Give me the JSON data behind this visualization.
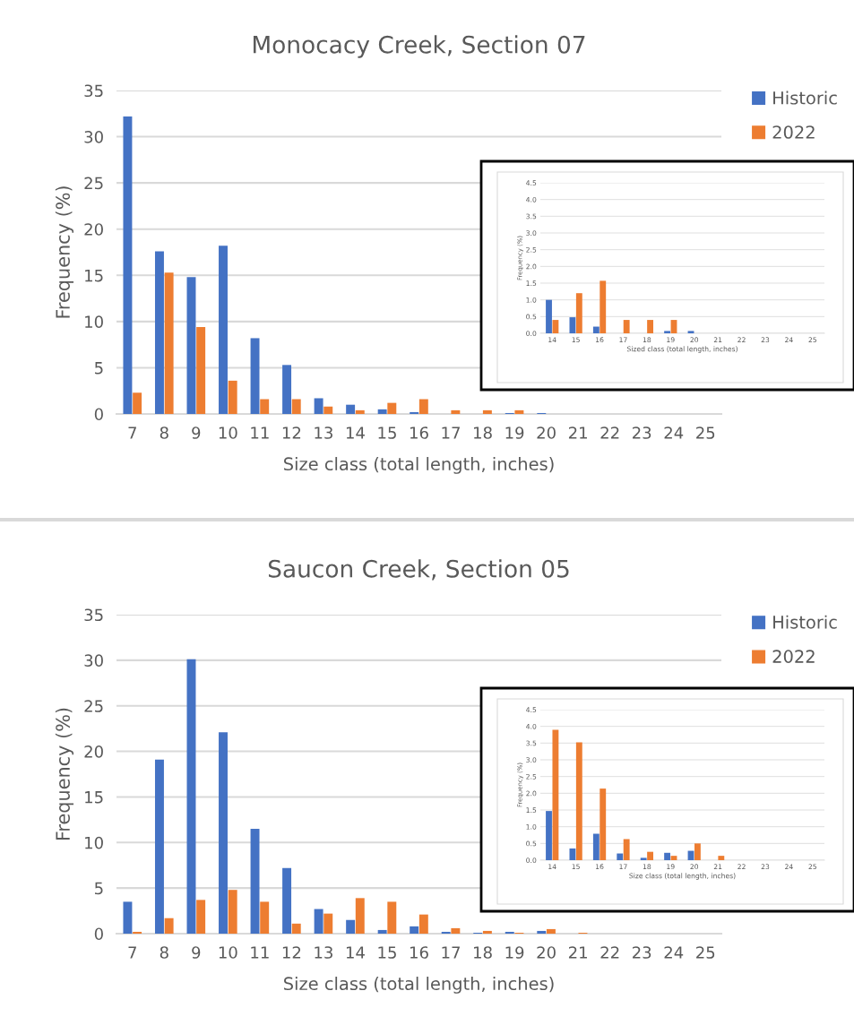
{
  "chart_data": [
    {
      "type": "bar",
      "title": "Monocacy Creek, Section 07",
      "xlabel": "Size class (total length, inches)",
      "ylabel": "Frequency (%)",
      "categories": [
        "7",
        "8",
        "9",
        "10",
        "11",
        "12",
        "13",
        "14",
        "15",
        "16",
        "17",
        "18",
        "19",
        "20",
        "21",
        "22",
        "23",
        "24",
        "25"
      ],
      "series": [
        {
          "name": "Historic",
          "color": "#4472c4",
          "values": [
            32.2,
            17.6,
            14.8,
            18.2,
            8.2,
            5.3,
            1.7,
            1.0,
            0.5,
            0.2,
            0,
            0,
            0.1,
            0.1,
            0,
            0,
            0,
            0,
            0
          ]
        },
        {
          "name": "2022",
          "color": "#ed7d31",
          "values": [
            2.3,
            15.3,
            9.4,
            3.6,
            1.6,
            1.6,
            0.8,
            0.4,
            1.2,
            1.6,
            0.4,
            0.4,
            0.4,
            0,
            0,
            0,
            0,
            0,
            0
          ]
        }
      ],
      "ylim": [
        0,
        35
      ],
      "yticks": [
        0,
        5,
        10,
        15,
        20,
        25,
        30,
        35
      ],
      "grid": "y",
      "legend": "top right"
    },
    {
      "type": "bar",
      "xlabel": "Sized class (total length, inches)",
      "ylabel": "Frequency (%)",
      "categories": [
        "14",
        "15",
        "16",
        "17",
        "18",
        "19",
        "20",
        "21",
        "22",
        "23",
        "24",
        "25"
      ],
      "series": [
        {
          "color": "#4472c4",
          "values": [
            1.0,
            0.48,
            0.2,
            0,
            0,
            0.07,
            0.07,
            0,
            0,
            0,
            0,
            0
          ]
        },
        {
          "color": "#ed7d31",
          "values": [
            0.4,
            1.2,
            1.57,
            0.4,
            0.4,
            0.4,
            0,
            0,
            0,
            0,
            0,
            0
          ]
        }
      ],
      "ylim": [
        0,
        4.5
      ],
      "yticks": [
        {
          "value": 0,
          "label": "0.0"
        },
        {
          "value": 0.5,
          "label": "0.5"
        },
        {
          "value": 1,
          "label": "1.0"
        },
        {
          "value": 1.5,
          "label": "1.5"
        },
        {
          "value": 2,
          "label": "2.0"
        },
        {
          "value": 2.5,
          "label": "2.5"
        },
        {
          "value": 3,
          "label": "3.0"
        },
        {
          "value": 3.5,
          "label": "3.5"
        },
        {
          "value": 4,
          "label": "4.0"
        },
        {
          "value": 4.5,
          "label": "4.5"
        }
      ],
      "grid": "y"
    },
    {
      "type": "bar",
      "title": "Saucon Creek, Section 05",
      "xlabel": "Size class (total length, inches)",
      "ylabel": "Frequency (%)",
      "categories": [
        "7",
        "8",
        "9",
        "10",
        "11",
        "12",
        "13",
        "14",
        "15",
        "16",
        "17",
        "18",
        "19",
        "20",
        "21",
        "22",
        "23",
        "24",
        "25"
      ],
      "series": [
        {
          "name": "Historic",
          "color": "#4472c4",
          "values": [
            3.5,
            19.1,
            30.1,
            22.1,
            11.5,
            7.2,
            2.7,
            1.5,
            0.4,
            0.8,
            0.2,
            0.1,
            0.2,
            0.3,
            0,
            0,
            0,
            0,
            0
          ]
        },
        {
          "name": "2022",
          "color": "#ed7d31",
          "values": [
            0.2,
            1.7,
            3.7,
            4.8,
            3.5,
            1.1,
            2.2,
            3.9,
            3.5,
            2.1,
            0.6,
            0.3,
            0.1,
            0.5,
            0.1,
            0,
            0,
            0,
            0
          ]
        }
      ],
      "ylim": [
        0,
        35
      ],
      "yticks": [
        0,
        5,
        10,
        15,
        20,
        25,
        30,
        35
      ],
      "grid": "y",
      "legend": "top right"
    },
    {
      "type": "bar",
      "xlabel": "Size class (total length, inches)",
      "ylabel": "Frequency (%)",
      "categories": [
        "14",
        "15",
        "16",
        "17",
        "18",
        "19",
        "20",
        "21",
        "22",
        "23",
        "24",
        "25"
      ],
      "series": [
        {
          "color": "#4472c4",
          "values": [
            1.47,
            0.35,
            0.79,
            0.2,
            0.07,
            0.22,
            0.28,
            0,
            0,
            0,
            0,
            0
          ]
        },
        {
          "color": "#ed7d31",
          "values": [
            3.9,
            3.52,
            2.14,
            0.63,
            0.25,
            0.13,
            0.5,
            0.13,
            0,
            0,
            0,
            0
          ]
        }
      ],
      "ylim": [
        0,
        4.5
      ],
      "yticks": [
        {
          "value": 0,
          "label": "0.0"
        },
        {
          "value": 0.5,
          "label": "0.5"
        },
        {
          "value": 1,
          "label": "1.0"
        },
        {
          "value": 1.5,
          "label": "1.5"
        },
        {
          "value": 2,
          "label": "2.0"
        },
        {
          "value": 2.5,
          "label": "2.5"
        },
        {
          "value": 3,
          "label": "3.0"
        },
        {
          "value": 3.5,
          "label": "3.5"
        },
        {
          "value": 4,
          "label": "4.0"
        },
        {
          "value": 4.5,
          "label": "4.5"
        }
      ],
      "grid": "y"
    }
  ]
}
